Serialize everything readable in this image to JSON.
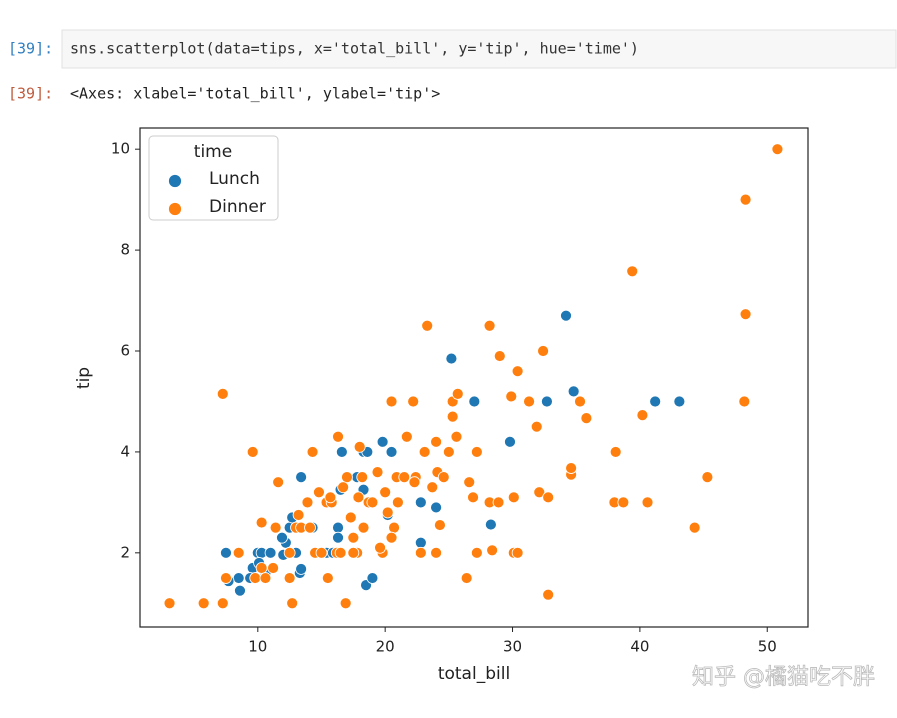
{
  "cell": {
    "prompt_in": "[39]:",
    "code": "sns.scatterplot(data=tips, x='total_bill', y='tip', hue='time')"
  },
  "output": {
    "prompt_out": "[39]:",
    "text": "<Axes: xlabel='total_bill', ylabel='tip'>"
  },
  "chart_data": {
    "type": "scatter",
    "x_label": "total_bill",
    "y_label": "tip",
    "xlim": [
      0.75,
      53.2
    ],
    "ylim": [
      0.53,
      10.42
    ],
    "xticks": [
      10,
      20,
      30,
      40,
      50
    ],
    "yticks": [
      2,
      4,
      6,
      8,
      10
    ],
    "legend": "upper left",
    "legend_title": "time",
    "grid": false,
    "series": [
      {
        "name": "Lunch",
        "color": "#1f77b4",
        "x": [
          7.5,
          8.5,
          8.6,
          7.7,
          9.6,
          10,
          10.3,
          10.6,
          12.2,
          12.5,
          13,
          13.4,
          13.3,
          15,
          15.4,
          16.3,
          16.5,
          16.6,
          17.8,
          18.3,
          18.6,
          18.3,
          19.8,
          20.2,
          20.5,
          22.8,
          22.8,
          24,
          25.2,
          27,
          28.3,
          29.8,
          32.7,
          34.2,
          34.8,
          41.2,
          43.1,
          18.5,
          19,
          16.3,
          11,
          11.9,
          12.7,
          13.4,
          14.3,
          9.4,
          10.1,
          15.9,
          12
        ],
        "values": [
          2,
          1.5,
          1.25,
          1.44,
          1.7,
          2,
          2,
          1.6,
          2.2,
          2.5,
          2,
          3.5,
          1.6,
          2,
          2,
          2.5,
          3.25,
          4,
          3.5,
          4,
          4,
          3.25,
          4.2,
          2.75,
          4,
          2.2,
          3,
          2.9,
          5.85,
          5,
          2.56,
          4.2,
          5,
          6.7,
          5.2,
          5,
          5,
          1.36,
          1.5,
          2.3,
          2,
          2.3,
          2.7,
          1.68,
          2.5,
          1.5,
          1.8,
          2,
          1.96
        ]
      },
      {
        "name": "Dinner",
        "color": "#ff7f0e",
        "x": [
          3.07,
          5.75,
          7.25,
          7.25,
          7.5,
          8.5,
          9.6,
          9.8,
          10.3,
          10.3,
          10.6,
          11.2,
          11.4,
          11.6,
          12.5,
          12.7,
          13,
          13.2,
          13.4,
          13.9,
          14.1,
          14.5,
          14.8,
          15,
          15.4,
          15.5,
          15.8,
          16.2,
          16.3,
          16.5,
          16.9,
          17,
          17.3,
          17.5,
          17.9,
          17.8,
          18,
          18.2,
          18.7,
          18.3,
          19,
          19.4,
          19.8,
          20,
          20.2,
          20.5,
          20.7,
          20.9,
          21,
          21.5,
          21.7,
          22.2,
          22.4,
          22.8,
          23.1,
          23.3,
          23.7,
          24,
          24.1,
          24.3,
          24.6,
          25,
          25.3,
          25.3,
          25.6,
          25.7,
          26.4,
          26.6,
          26.9,
          27.2,
          27.2,
          28.2,
          28.4,
          28.2,
          28.9,
          29,
          29.9,
          30.1,
          30.1,
          30.4,
          30.4,
          31.3,
          31.9,
          32.1,
          32.4,
          32.8,
          32.8,
          34.6,
          34.6,
          35.3,
          35.8,
          38,
          38.1,
          38.7,
          39.4,
          40.2,
          40.6,
          44.3,
          45.3,
          48.2,
          48.3,
          48.3,
          50.8,
          17.5,
          14.3,
          12.5,
          20.5,
          19.6,
          15.7,
          16.7,
          22.3,
          24
        ],
        "values": [
          1,
          1,
          1,
          5.15,
          1.5,
          2,
          4,
          1.5,
          2.6,
          1.7,
          1.5,
          1.7,
          2.5,
          3.4,
          1.5,
          1,
          2.5,
          2.75,
          2.5,
          3,
          2.5,
          2,
          3.2,
          2,
          3,
          1.5,
          3,
          2,
          4.3,
          2,
          1,
          3.5,
          2.7,
          2.3,
          3.1,
          2,
          4.1,
          3.5,
          3,
          2.5,
          3,
          3.6,
          2,
          3.2,
          2.8,
          5,
          2.5,
          3.5,
          3,
          3.5,
          4.3,
          5,
          3.5,
          2,
          4,
          6.5,
          3.3,
          2,
          3.6,
          2.55,
          3.5,
          4,
          4.7,
          5,
          4.3,
          5.15,
          1.5,
          3.4,
          3.1,
          2,
          4,
          6.5,
          2.05,
          3,
          3,
          5.9,
          5.1,
          3.1,
          2,
          2,
          5.6,
          5,
          4.5,
          3.2,
          6,
          3.1,
          1.17,
          3.55,
          3.68,
          5,
          4.67,
          3,
          4,
          3,
          7.58,
          4.73,
          3,
          2.5,
          3.5,
          5,
          6.73,
          9,
          10,
          2,
          4,
          2,
          2.3,
          2.1,
          3.1,
          3.3,
          3.4,
          4.2
        ]
      }
    ]
  },
  "watermark": "知乎 @橘猫吃不胖"
}
